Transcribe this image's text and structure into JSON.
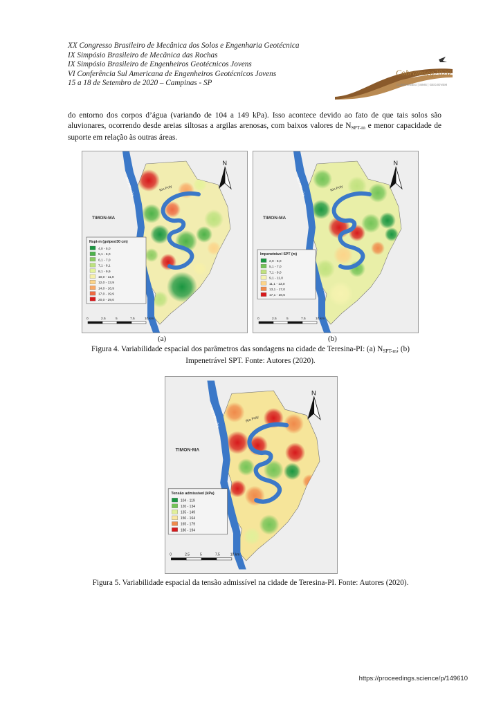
{
  "header": {
    "lines": [
      "XX Congresso Brasileiro de Mecânica dos Solos e Engenharia Geotécnica",
      "IX Simpósio Brasileiro de Mecânica das Rochas",
      "IX Simpósio Brasileiro de Engenheiros Geotécnicos Jovens",
      "VI Conferência Sul Americana de Engenheiros Geotécnicos Jovens",
      "15 a 18 de Setembro de 2020 – Campinas - SP"
    ],
    "logo_text": "Cobramseg2020",
    "logo_sub": "COBRAMSEG | SIMS | GEOJOVEM"
  },
  "paragraph": {
    "part1": "do entorno dos corpos d’água (variando de 104 a 149 kPa). Isso acontece devido ao fato de que tais solos são aluvionares, ocorrendo desde areias siltosas a argilas arenosas, com baixos valores de N",
    "sub": "SPT-m",
    "part2": " e menor capacidade de suporte em relação às outras áreas."
  },
  "maps": {
    "river_parnaiba": "Rio Parnaíba",
    "river_poti": "Rio Poty",
    "city_label": "TIMON-MA",
    "north": "N",
    "scale_ticks": [
      "0",
      "2.5",
      "5",
      "7.5",
      "10 km"
    ]
  },
  "figure4": {
    "map_a": {
      "legend_title": "Nspt-m (golpes/30 cm)",
      "legend": [
        "4,0 - 5,0",
        "5,1 - 6,0",
        "6,1 - 7,0",
        "7,1 - 8,1",
        "8,1 - 9,9",
        "10,0 - 11,9",
        "12,0 - 13,9",
        "14,0 - 16,9",
        "17,0 - 19,9",
        "20,0 - 29,0"
      ]
    },
    "map_b": {
      "legend_title": "Impenetrável SPT (m)",
      "legend": [
        "2,0 - 5,0",
        "5,1 - 7,0",
        "7,1 - 9,0",
        "9,1 - 11,0",
        "11,1 - 13,0",
        "13,1 - 17,0",
        "17,1 - 28,6"
      ]
    },
    "label_a": "(a)",
    "label_b": "(b)",
    "caption_part1": "Figura 4. Variabilidade espacial dos parâmetros das sondagens na cidade de Teresina-PI: (a) N",
    "caption_sub": "SPT-m",
    "caption_part2": "; (b)",
    "caption_line2": "Impenetrável SPT. Fonte: Autores (2020)."
  },
  "figure5": {
    "legend_title": "Tensão admissível (kPa)",
    "legend": [
      "104 - 119",
      "120 - 134",
      "135 - 149",
      "150 - 164",
      "165 - 179",
      "180 - 194"
    ],
    "caption": "Figura 5. Variabilidade espacial da tensão admissível na cidade de Teresina-PI. Fonte: Autores (2020)."
  },
  "footer": {
    "url": "https://proceedings.science/p/149610"
  },
  "colors": {
    "nspt": [
      "#1a9641",
      "#4db249",
      "#8ccc62",
      "#bde27f",
      "#e5f39a",
      "#f7f0a8",
      "#fcd48a",
      "#f9a866",
      "#ee6a43",
      "#d7191c"
    ],
    "imp": [
      "#1a9641",
      "#74c458",
      "#c1e27f",
      "#f6f3b0",
      "#fcd48a",
      "#f08a4b",
      "#d7191c"
    ],
    "tensao": [
      "#1a9641",
      "#74c458",
      "#e1f09a",
      "#fbe7a0",
      "#f08a4b",
      "#d7191c"
    ],
    "river": "#3b78c8",
    "logo_brown": "#8a5a2b"
  }
}
